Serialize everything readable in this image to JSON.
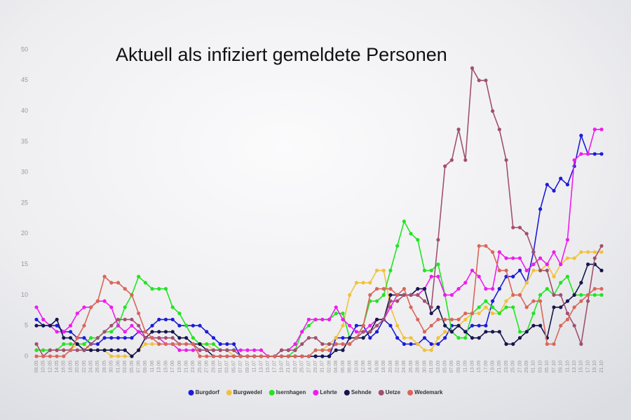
{
  "chart_data": {
    "type": "line",
    "title": "Aktuell als infiziert gemeldete Personen",
    "categories": [
      "08.05",
      "10.05",
      "12.05",
      "14.05",
      "16.05",
      "18.05",
      "20.05",
      "22.05",
      "24.05",
      "26.05",
      "28.05",
      "30.05",
      "01.06",
      "03.06",
      "05.06",
      "07.06",
      "09.06",
      "11.06",
      "13.06",
      "15.06",
      "17.06",
      "19.06",
      "21.06",
      "23.06",
      "25.06",
      "27.06",
      "29.06",
      "01.07",
      "03.07",
      "05.07",
      "07.07",
      "09.07",
      "11.07",
      "13.07",
      "15.07",
      "17.07",
      "19.07",
      "21.07",
      "23.07",
      "25.07",
      "27.07",
      "29.07",
      "31.07",
      "02.08",
      "04.08",
      "06.08",
      "08.08",
      "10.08",
      "12.08",
      "14.08",
      "16.08",
      "18.08",
      "20.08",
      "22.08",
      "24.08",
      "26.08",
      "28.08",
      "30.08",
      "01.09",
      "03.09",
      "05.09",
      "07.09",
      "09.09",
      "11.09",
      "13.09",
      "15.09",
      "17.09",
      "19.09",
      "21.09",
      "23.09",
      "25.09",
      "27.09",
      "29.09",
      "01.10",
      "03.10",
      "05.10",
      "07.10",
      "09.10",
      "11.10",
      "13.10",
      "15.10",
      "17.10",
      "19.10",
      "21.10"
    ],
    "ylim": [
      0,
      50
    ],
    "yticks": [
      0,
      5,
      10,
      15,
      20,
      25,
      30,
      35,
      40,
      45,
      50
    ],
    "grid": false,
    "legend": "bottom",
    "series": [
      {
        "name": "Burgdorf",
        "color": "#1c1cd8",
        "values": [
          6,
          5,
          5,
          5,
          4,
          4,
          3,
          3,
          2,
          2,
          3,
          3,
          3,
          3,
          3,
          4,
          4,
          5,
          6,
          6,
          6,
          5,
          5,
          5,
          5,
          4,
          3,
          2,
          2,
          2,
          0,
          0,
          0,
          0,
          0,
          0,
          0,
          0,
          0,
          0,
          0,
          0,
          0,
          0,
          3,
          3,
          3,
          5,
          5,
          3,
          4,
          6,
          5,
          3,
          2,
          2,
          2,
          3,
          2,
          2,
          3,
          5,
          5,
          4,
          5,
          5,
          5,
          9,
          11,
          13,
          13,
          14,
          12,
          17,
          24,
          28,
          27,
          29,
          28,
          31,
          36,
          33,
          33,
          33
        ]
      },
      {
        "name": "Burgwedel",
        "color": "#f2c13c",
        "values": [
          1,
          1,
          1,
          1,
          1,
          1,
          2,
          2,
          1,
          1,
          1,
          0,
          0,
          0,
          0,
          1,
          2,
          2,
          2,
          2,
          2,
          2,
          2,
          2,
          2,
          2,
          1,
          1,
          1,
          0,
          0,
          0,
          0,
          0,
          0,
          0,
          0,
          0,
          0,
          0,
          0,
          1,
          1,
          2,
          3,
          5,
          10,
          12,
          12,
          12,
          14,
          14,
          8,
          5,
          3,
          3,
          2,
          1,
          1,
          3,
          4,
          4,
          5,
          6,
          7,
          7,
          8,
          7,
          7,
          9,
          10,
          10,
          12,
          14,
          14,
          15,
          13,
          15,
          16,
          16,
          17,
          17,
          17,
          17
        ]
      },
      {
        "name": "Isernhagen",
        "color": "#22e422",
        "values": [
          1,
          1,
          1,
          1,
          2,
          2,
          2,
          2,
          3,
          3,
          4,
          4,
          5,
          8,
          10,
          13,
          12,
          11,
          11,
          11,
          8,
          7,
          5,
          3,
          2,
          2,
          2,
          1,
          1,
          1,
          0,
          0,
          0,
          0,
          0,
          0,
          0,
          0,
          1,
          4,
          5,
          6,
          6,
          6,
          7,
          7,
          3,
          3,
          5,
          9,
          9,
          10,
          14,
          18,
          22,
          20,
          19,
          14,
          14,
          15,
          10,
          4,
          3,
          3,
          7,
          8,
          9,
          8,
          7,
          8,
          8,
          4,
          4,
          7,
          10,
          11,
          10,
          12,
          13,
          10,
          10,
          10,
          10,
          10
        ]
      },
      {
        "name": "Lehrte",
        "color": "#ee1cee",
        "values": [
          8,
          6,
          5,
          4,
          4,
          5,
          7,
          8,
          8,
          9,
          9,
          8,
          5,
          4,
          5,
          4,
          3,
          3,
          3,
          2,
          2,
          1,
          1,
          1,
          1,
          1,
          1,
          1,
          1,
          1,
          1,
          1,
          1,
          1,
          0,
          0,
          1,
          1,
          2,
          4,
          6,
          6,
          6,
          6,
          8,
          6,
          5,
          4,
          4,
          5,
          6,
          6,
          8,
          10,
          10,
          10,
          10,
          11,
          13,
          13,
          10,
          10,
          11,
          12,
          14,
          13,
          11,
          11,
          17,
          16,
          16,
          16,
          14,
          15,
          16,
          15,
          17,
          15,
          19,
          32,
          33,
          33,
          37,
          37
        ]
      },
      {
        "name": "Sehnde",
        "color": "#15154e",
        "values": [
          5,
          5,
          5,
          6,
          3,
          3,
          2,
          1,
          1,
          1,
          1,
          1,
          1,
          1,
          0,
          1,
          3,
          4,
          4,
          4,
          4,
          3,
          3,
          2,
          2,
          1,
          0,
          0,
          0,
          0,
          0,
          0,
          0,
          0,
          0,
          0,
          0,
          0,
          0,
          0,
          0,
          0,
          0,
          0,
          1,
          1,
          3,
          3,
          3,
          4,
          6,
          6,
          10,
          10,
          10,
          10,
          11,
          11,
          7,
          8,
          5,
          4,
          5,
          4,
          3,
          3,
          4,
          4,
          4,
          2,
          2,
          3,
          4,
          5,
          5,
          3,
          8,
          8,
          9,
          10,
          12,
          15,
          15,
          14
        ]
      },
      {
        "name": "Uetze",
        "color": "#a1506f",
        "values": [
          2,
          0,
          1,
          1,
          1,
          1,
          1,
          1,
          2,
          3,
          4,
          5,
          6,
          6,
          6,
          5,
          3,
          3,
          3,
          3,
          3,
          2,
          2,
          2,
          1,
          1,
          1,
          1,
          1,
          1,
          0,
          0,
          0,
          0,
          0,
          0,
          1,
          1,
          1,
          2,
          3,
          3,
          2,
          2,
          2,
          2,
          2,
          3,
          4,
          4,
          5,
          6,
          9,
          9,
          10,
          10,
          10,
          9,
          8,
          19,
          31,
          32,
          37,
          32,
          47,
          45,
          45,
          40,
          37,
          32,
          21,
          21,
          20,
          17,
          14,
          14,
          10,
          10,
          7,
          5,
          2,
          9,
          16,
          18
        ]
      },
      {
        "name": "Wedemark",
        "color": "#d9665a",
        "values": [
          0,
          0,
          0,
          0,
          0,
          1,
          3,
          5,
          8,
          9,
          13,
          12,
          12,
          11,
          10,
          7,
          4,
          3,
          2,
          2,
          2,
          2,
          2,
          2,
          0,
          0,
          0,
          0,
          0,
          0,
          0,
          0,
          0,
          0,
          0,
          0,
          0,
          0,
          0,
          0,
          0,
          1,
          1,
          1,
          2,
          2,
          2,
          3,
          5,
          10,
          11,
          11,
          11,
          10,
          11,
          8,
          6,
          4,
          5,
          6,
          6,
          6,
          6,
          7,
          7,
          18,
          18,
          17,
          14,
          14,
          10,
          10,
          8,
          9,
          9,
          2,
          2,
          5,
          6,
          8,
          9,
          10,
          11,
          11
        ]
      }
    ]
  }
}
